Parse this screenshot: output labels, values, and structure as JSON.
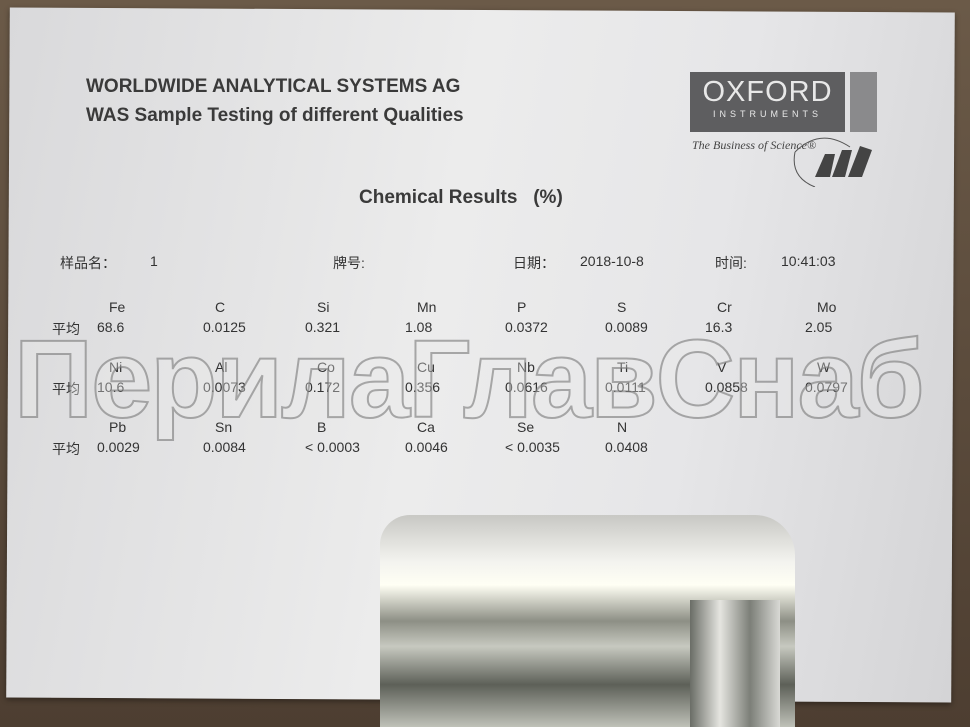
{
  "header": {
    "company": "WORLDWIDE ANALYTICAL SYSTEMS AG",
    "subtitle": "WAS Sample Testing of different Qualities"
  },
  "logo": {
    "brand": "OXFORD",
    "brand_sub": "INSTRUMENTS",
    "tagline": "The Business of Science®",
    "mark": "WAS"
  },
  "report_title": "Chemical Results   (%)",
  "meta": {
    "sample_label": "样品名：",
    "sample_value": "1",
    "grade_label": "牌号:",
    "date_label": "日期：",
    "date_value": "2018-10-8",
    "time_label": "时间:",
    "time_value": "10:41:03"
  },
  "row_label": "平均",
  "rows": [
    {
      "elements": [
        "Fe",
        "C",
        "Si",
        "Mn",
        "P",
        "S",
        "Cr",
        "Mo"
      ],
      "values": [
        "68.6",
        "0.0125",
        "0.321",
        "1.08",
        "0.0372",
        "0.0089",
        "16.3",
        "2.05"
      ]
    },
    {
      "elements": [
        "Ni",
        "Al",
        "Co",
        "Cu",
        "Nb",
        "Ti",
        "V",
        "W"
      ],
      "values": [
        "10.6",
        "0.0073",
        "0.172",
        "0.356",
        "0.0616",
        "0.0111",
        "0.0858",
        "0.0797"
      ]
    },
    {
      "elements": [
        "Pb",
        "Sn",
        "B",
        "Ca",
        "Se",
        "N"
      ],
      "values": [
        "0.0029",
        "0.0084",
        "< 0.0003",
        "0.0046",
        "< 0.0035",
        "0.0408"
      ]
    }
  ],
  "watermark": "ПерилаГлавСнаб"
}
